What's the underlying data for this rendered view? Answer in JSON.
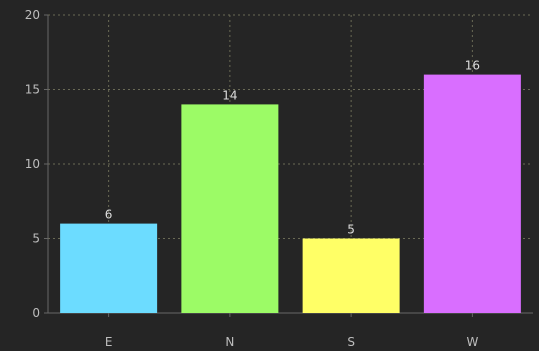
{
  "chart_data": {
    "type": "bar",
    "categories": [
      "E",
      "N",
      "S",
      "W"
    ],
    "values": [
      6,
      14,
      5,
      16
    ],
    "ylim": [
      0,
      20
    ],
    "yticks": [
      0,
      5,
      10,
      15,
      20
    ],
    "grid": true,
    "colors": [
      "#6cdcff",
      "#9cfb66",
      "#ffff66",
      "#d96eff"
    ],
    "background": "#252525",
    "title": "",
    "xlabel": "",
    "ylabel": ""
  }
}
